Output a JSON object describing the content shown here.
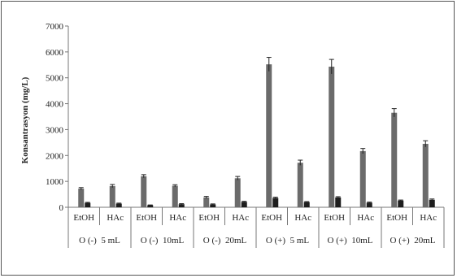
{
  "chart_data": {
    "type": "bar",
    "ylabel": "Konsantrasyon (mg/L)",
    "ylim": [
      0,
      7000
    ],
    "yticks": [
      "0",
      "1000",
      "2000",
      "3000",
      "4000",
      "5000",
      "6000",
      "7000"
    ],
    "grid": false,
    "legend": "none",
    "groups": [
      "O (-)  5 mL",
      "O (-)  10mL",
      "O (-)  20mL",
      "O (+)  5 mL",
      "O (+)  10mL",
      "O (+)  20mL"
    ],
    "categories": [
      "EtOH",
      "HAc",
      "EtOH",
      "HAc",
      "EtOH",
      "HAc",
      "EtOH",
      "HAc",
      "EtOH",
      "HAc",
      "EtOH",
      "HAc"
    ],
    "series": [
      {
        "values": [
          720,
          820,
          1200,
          830,
          380,
          1120,
          5520,
          1720,
          5430,
          2170,
          3650,
          2450
        ],
        "errors": [
          40,
          60,
          60,
          40,
          40,
          70,
          270,
          100,
          280,
          100,
          160,
          120
        ]
      },
      {
        "values": [
          170,
          140,
          80,
          120,
          110,
          210,
          360,
          200,
          380,
          180,
          260,
          290
        ],
        "errors": [
          20,
          20,
          10,
          20,
          20,
          20,
          30,
          20,
          30,
          20,
          20,
          30
        ]
      }
    ],
    "colors": [
      "#6b6b6b",
      "#1e1e1e"
    ]
  }
}
